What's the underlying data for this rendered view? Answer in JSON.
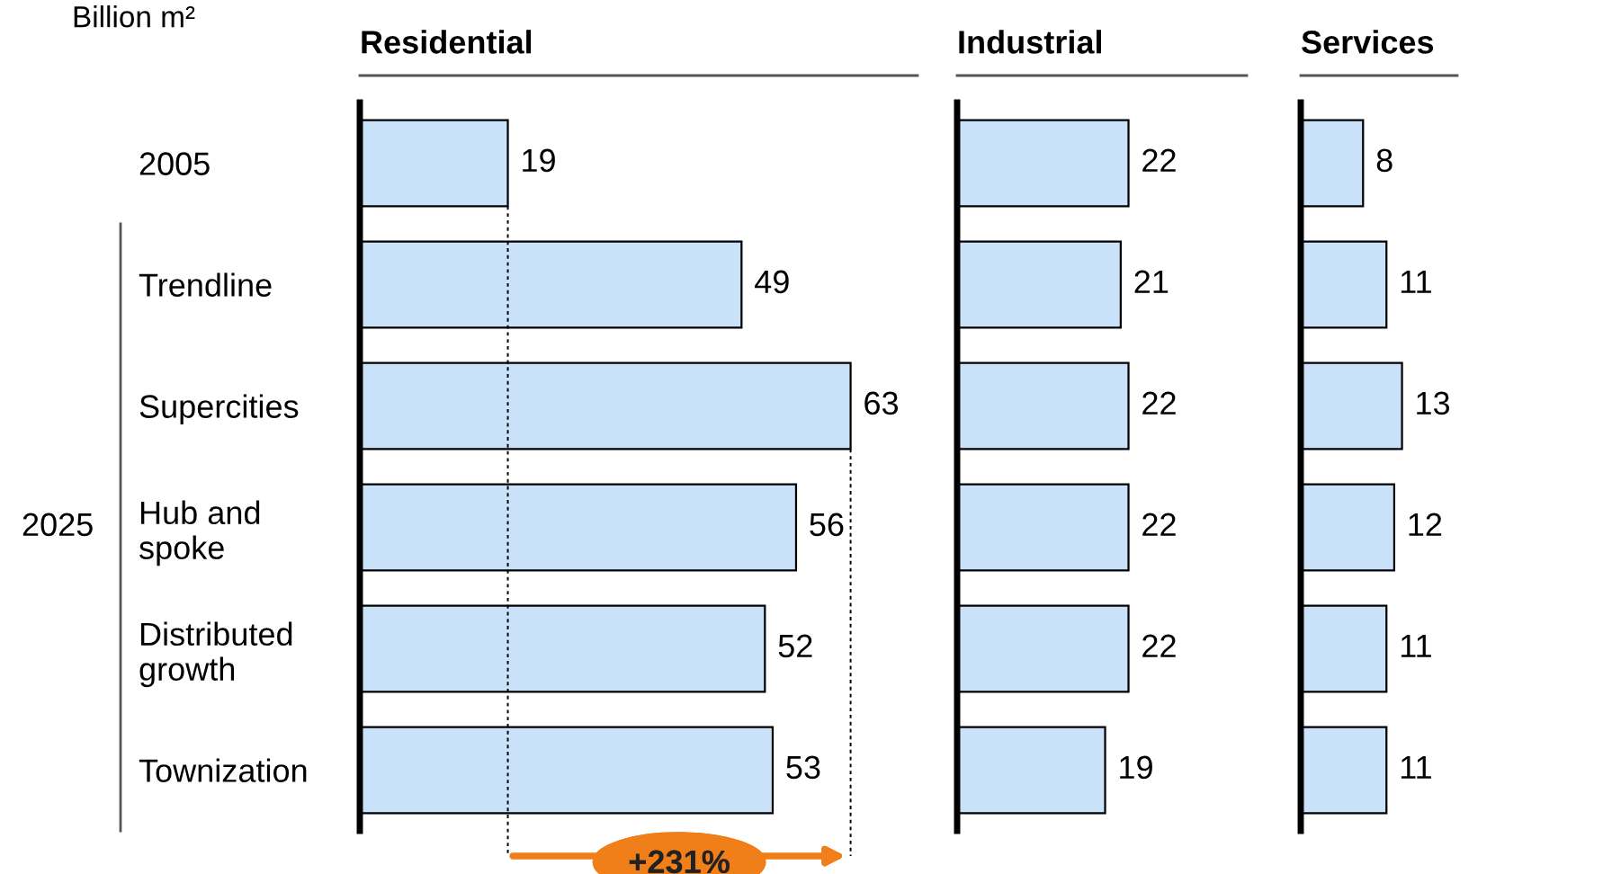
{
  "chart_data": [
    {
      "type": "bar",
      "orientation": "horizontal",
      "title": "Residential",
      "subtitle": "Billion m²",
      "categories": [
        "2005",
        "Trendline",
        "Supercities",
        "Hub and\nspoke",
        "Distributed\ngrowth",
        "Townization"
      ],
      "values": [
        19,
        49,
        63,
        56,
        52,
        53
      ],
      "color": "#c9e1f9",
      "data_labels": true,
      "grid": false,
      "legend": false,
      "annotations": [
        "2025",
        "+231%"
      ],
      "ref_lines": [
        {
          "axis": "x",
          "value": 19,
          "color": "#000000",
          "line_style": "dashed"
        },
        {
          "axis": "x",
          "value": 63,
          "color": "#000000",
          "line_style": "dashed"
        }
      ]
    },
    {
      "type": "bar",
      "orientation": "horizontal",
      "title": "Industrial",
      "categories": [
        null,
        null,
        null,
        null,
        null,
        null
      ],
      "values": [
        22,
        21,
        22,
        22,
        22,
        19
      ],
      "color": "#c9e1f9",
      "data_labels": true,
      "grid": false,
      "legend": false
    },
    {
      "type": "bar",
      "orientation": "horizontal",
      "title": "Services",
      "categories": [
        null,
        null,
        null,
        null,
        null,
        null
      ],
      "values": [
        8,
        11,
        13,
        12,
        11,
        11
      ],
      "color": "#c9e1f9",
      "data_labels": true,
      "grid": false,
      "legend": false
    }
  ]
}
